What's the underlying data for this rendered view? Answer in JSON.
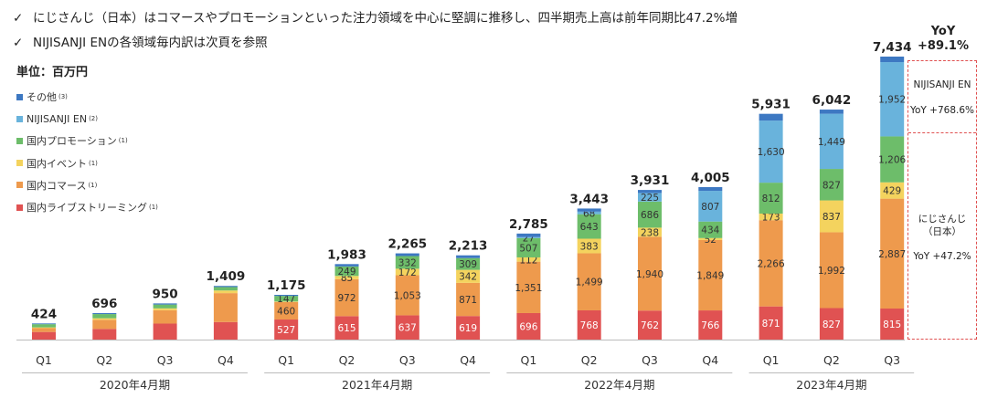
{
  "bullets": [
    {
      "icon": "check-icon",
      "text": "にじさんじ（日本）はコマースやプロモーションといった注力領域を中心に堅調に推移し、四半期売上高は前年同期比47.2%増"
    },
    {
      "icon": "check-icon",
      "text": "NIJISANJI ENの各領域毎内訳は次頁を参照"
    }
  ],
  "check_glyph": "✓",
  "unit_label": "単位：百万円",
  "yoy_total": {
    "label": "YoY",
    "value": "+89.1%"
  },
  "callout": {
    "en_name": "NIJISANJI EN",
    "en_yoy": "YoY +768.6%",
    "jp_name_line1": "にじさんじ",
    "jp_name_line2": "（日本）",
    "jp_yoy": "YoY +47.2%"
  },
  "colors": {
    "live": "#e05252",
    "commerce": "#ee9a4d",
    "event": "#f4d35e",
    "promotion": "#6dbd6a",
    "en": "#69b3dc",
    "other": "#3d78c2",
    "axis": "#bbbbbb",
    "dashed": "#e05050"
  },
  "chart_data": {
    "type": "bar",
    "stacked": true,
    "categories": [
      "Q1",
      "Q2",
      "Q3",
      "Q4",
      "Q1",
      "Q2",
      "Q3",
      "Q4",
      "Q1",
      "Q2",
      "Q3",
      "Q4",
      "Q1",
      "Q2",
      "Q3"
    ],
    "groups": [
      {
        "label": "2020年4月期",
        "start": 0,
        "end": 3
      },
      {
        "label": "2021年4月期",
        "start": 4,
        "end": 7
      },
      {
        "label": "2022年4月期",
        "start": 8,
        "end": 11
      },
      {
        "label": "2023年4月期",
        "start": 12,
        "end": 14
      }
    ],
    "totals": [
      424,
      696,
      950,
      1409,
      1175,
      1983,
      2265,
      2213,
      2785,
      3443,
      3931,
      4005,
      5931,
      6042,
      7434
    ],
    "series": [
      {
        "name": "国内ライブストリーミング",
        "sup": "(1)",
        "color_key": "live",
        "values": [
          200,
          280,
          420,
          460,
          527,
          615,
          637,
          619,
          696,
          768,
          762,
          766,
          871,
          827,
          815
        ],
        "labels": [
          null,
          null,
          null,
          null,
          "527",
          "615",
          "637",
          "619",
          "696",
          "768",
          "762",
          "766",
          "871",
          "827",
          "815"
        ]
      },
      {
        "name": "国内コマース",
        "sup": "(1)",
        "color_key": "commerce",
        "values": [
          100,
          240,
          350,
          760,
          460,
          972,
          1053,
          871,
          1351,
          1499,
          1940,
          1849,
          2266,
          1992,
          2887
        ],
        "labels": [
          null,
          null,
          null,
          null,
          "460",
          "972",
          "1,053",
          "871",
          "1,351",
          "1,499",
          "1,940",
          "1,849",
          "2,266",
          "1,992",
          "2,887"
        ]
      },
      {
        "name": "国内イベント",
        "sup": "(1)",
        "color_key": "event",
        "values": [
          20,
          40,
          50,
          70,
          13,
          85,
          172,
          342,
          112,
          383,
          238,
          52,
          173,
          837,
          429
        ],
        "labels": [
          null,
          null,
          null,
          null,
          null,
          "85",
          "172",
          "342",
          "112",
          "383",
          "238",
          "52",
          "173",
          "837",
          "429"
        ]
      },
      {
        "name": "国内プロモーション",
        "sup": "(1)",
        "color_key": "promotion",
        "values": [
          84,
          110,
          100,
          90,
          147,
          249,
          332,
          309,
          507,
          643,
          686,
          434,
          812,
          827,
          1206
        ],
        "labels": [
          null,
          null,
          null,
          null,
          "147",
          "249",
          "332",
          "309",
          "507",
          "643",
          "686",
          "434",
          "812",
          "827",
          "1,206"
        ]
      },
      {
        "name": "NIJISANJI EN",
        "sup": "(2)",
        "color_key": "en",
        "values": [
          0,
          0,
          0,
          0,
          0,
          0,
          0,
          0,
          27,
          68,
          225,
          807,
          1630,
          1449,
          1952
        ],
        "labels": [
          null,
          null,
          null,
          null,
          null,
          null,
          null,
          null,
          "27",
          "68",
          "225",
          "807",
          "1,630",
          "1,449",
          "1,952"
        ]
      },
      {
        "name": "その他",
        "sup": "(3)",
        "color_key": "other",
        "values": [
          20,
          26,
          30,
          29,
          28,
          62,
          71,
          72,
          92,
          82,
          80,
          97,
          179,
          110,
          145
        ],
        "labels": [
          null,
          null,
          null,
          null,
          null,
          null,
          null,
          null,
          null,
          null,
          null,
          null,
          null,
          null,
          null
        ]
      }
    ],
    "legend_order": [
      "その他",
      "NIJISANJI EN",
      "国内プロモーション",
      "国内イベント",
      "国内コマース",
      "国内ライブストリーミング"
    ],
    "legend_position": "left",
    "grid": false
  }
}
